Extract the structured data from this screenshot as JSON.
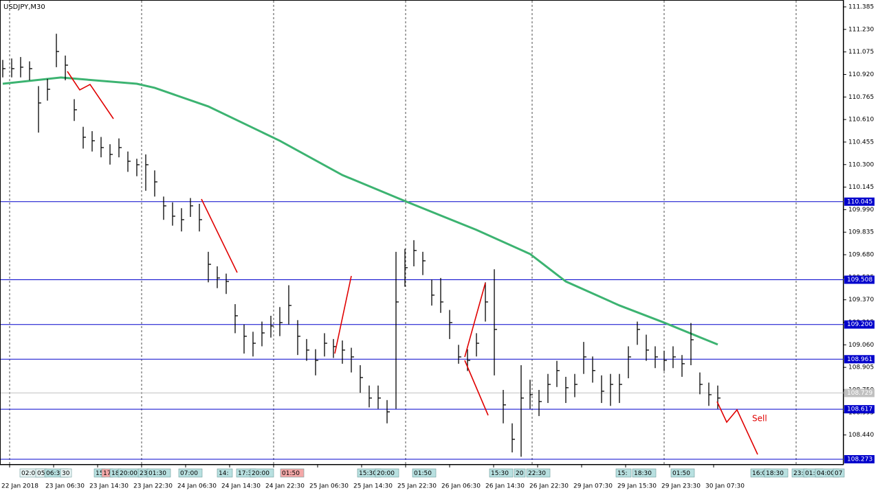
{
  "chart_data": {
    "type": "ohlc",
    "title": "USDJPY,M30",
    "ylim": [
      108.273,
      111.385
    ],
    "yticks": [
      111.385,
      {
        "value": 111.23,
        "label": "111.230"
      },
      111.075,
      {
        "value": 110.92,
        "label": "110.920"
      },
      110.765,
      {
        "value": 110.61,
        "label": "110.610"
      },
      110.455,
      {
        "value": 110.3,
        "label": "110.300"
      },
      110.145,
      {
        "value": 109.99,
        "label": "109.990"
      },
      109.835,
      {
        "value": 109.68,
        "label": "109.680"
      },
      109.525,
      {
        "value": 109.37,
        "label": "109.370"
      },
      109.215,
      {
        "value": 109.06,
        "label": "109.060"
      },
      108.905,
      {
        "value": 108.75,
        "label": "108.750"
      },
      108.595,
      {
        "value": 108.44,
        "label": "108.440"
      }
    ],
    "levels": [
      110.045,
      109.508,
      {
        "value": 109.2,
        "label": "109.200"
      },
      108.961,
      108.617,
      108.273
    ],
    "current_price": 108.729,
    "categories": [
      "22 Jan 2018",
      "23 Jan 06:30",
      "23 Jan 14:30",
      "23 Jan 22:30",
      "24 Jan 06:30",
      "24 Jan 14:30",
      "24 Jan 22:30",
      "25 Jan 06:30",
      "25 Jan 14:30",
      "25 Jan 22:30",
      "26 Jan 06:30",
      "26 Jan 14:30",
      "26 Jan 22:30",
      "29 Jan 07:30",
      "29 Jan 15:30",
      "29 Jan 23:30",
      "30 Jan 07:30"
    ],
    "time_tags": [
      "02:00",
      "05",
      "06:30",
      "30",
      "15",
      "17",
      "18",
      "20:00",
      "23",
      "01:30",
      "07:00",
      "14:",
      "17:3",
      "20:00",
      "01:50",
      "15:30",
      "20:00",
      "01:50",
      "15:30",
      "20",
      "22:30",
      "15:",
      "18:30",
      "01:50",
      "16:0",
      "18:30",
      "23:",
      "01:5",
      "04:00",
      "07"
    ],
    "close": [
      110.96,
      110.96,
      110.97,
      110.96,
      110.724,
      110.818,
      111.078,
      110.984,
      110.677,
      110.488,
      110.464,
      110.417,
      110.37,
      110.417,
      110.323,
      110.299,
      110.299,
      110.181,
      110.016,
      109.945,
      109.921,
      110.016,
      109.921,
      109.614,
      109.52,
      109.496,
      109.26,
      109.119,
      109.071,
      109.142,
      109.19,
      109.213,
      109.331,
      109.119,
      109.024,
      108.953,
      109.071,
      109.048,
      109.024,
      108.977,
      108.835,
      108.694,
      108.694,
      108.599,
      109.355,
      109.591,
      109.709,
      109.638,
      109.402,
      109.355,
      109.213,
      108.977,
      108.953,
      109.071,
      109.355,
      109.166,
      108.647,
      108.41,
      108.694,
      108.717,
      108.67,
      108.788,
      108.883,
      108.765,
      108.788,
      108.977,
      108.883,
      108.741,
      108.788,
      108.788,
      108.977,
      109.166,
      109.024,
      108.977,
      108.953,
      108.977,
      108.93,
      109.095,
      108.788,
      108.717,
      108.694
    ],
    "high": [
      111.02,
      111.03,
      111.04,
      111.01,
      110.84,
      110.89,
      111.2,
      111.05,
      110.75,
      110.56,
      110.53,
      110.49,
      110.44,
      110.48,
      110.39,
      110.34,
      110.37,
      110.26,
      110.08,
      110.04,
      110.0,
      110.07,
      110.03,
      109.7,
      109.6,
      109.55,
      109.34,
      109.2,
      109.15,
      109.22,
      109.26,
      109.32,
      109.47,
      109.23,
      109.1,
      109.03,
      109.14,
      109.1,
      109.09,
      109.04,
      108.92,
      108.78,
      108.78,
      108.68,
      109.7,
      109.72,
      109.78,
      109.7,
      109.51,
      109.52,
      109.3,
      109.06,
      109.03,
      109.14,
      109.49,
      109.58,
      108.75,
      108.52,
      108.92,
      108.82,
      108.75,
      108.86,
      108.95,
      108.84,
      108.86,
      109.08,
      108.98,
      108.85,
      108.86,
      108.86,
      109.05,
      109.22,
      109.13,
      109.05,
      109.02,
      109.05,
      108.99,
      109.21,
      108.87,
      108.8,
      108.78
    ],
    "low": [
      110.9,
      110.9,
      110.9,
      110.88,
      110.52,
      110.74,
      110.97,
      110.88,
      110.6,
      110.41,
      110.39,
      110.35,
      110.3,
      110.35,
      110.25,
      110.22,
      110.12,
      110.08,
      109.92,
      109.88,
      109.84,
      109.94,
      109.84,
      109.49,
      109.45,
      109.41,
      109.14,
      109.0,
      108.98,
      109.05,
      109.11,
      109.12,
      109.2,
      108.99,
      108.95,
      108.85,
      108.98,
      108.97,
      108.93,
      108.87,
      108.73,
      108.63,
      108.62,
      108.52,
      108.62,
      109.46,
      109.6,
      109.54,
      109.33,
      109.28,
      109.1,
      108.93,
      108.88,
      108.98,
      109.22,
      108.85,
      108.52,
      108.32,
      108.29,
      108.62,
      108.57,
      108.66,
      108.77,
      108.66,
      108.7,
      108.86,
      108.8,
      108.66,
      108.64,
      108.66,
      108.83,
      109.06,
      108.95,
      108.9,
      108.88,
      108.9,
      108.84,
      108.92,
      108.72,
      108.64,
      108.62
    ],
    "ma_x": [
      0,
      6.5,
      15,
      17,
      23,
      31,
      38,
      45,
      53,
      59,
      63,
      69,
      74,
      80
    ],
    "ma": [
      110.856,
      110.899,
      110.856,
      110.828,
      110.7,
      110.464,
      110.228,
      110.049,
      109.851,
      109.685,
      109.496,
      109.331,
      109.213,
      109.062
    ],
    "ma_color": "#3cb371",
    "bar_color": "#000000",
    "level_color": "#0000cc",
    "annotation": "Sell",
    "annotation_color": "#e00000"
  }
}
